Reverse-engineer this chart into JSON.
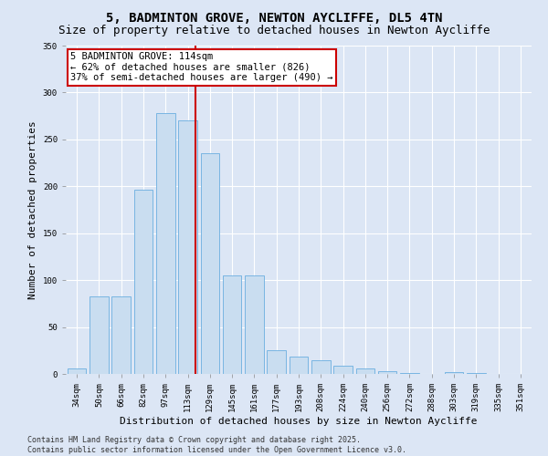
{
  "title_line1": "5, BADMINTON GROVE, NEWTON AYCLIFFE, DL5 4TN",
  "title_line2": "Size of property relative to detached houses in Newton Aycliffe",
  "xlabel": "Distribution of detached houses by size in Newton Aycliffe",
  "ylabel": "Number of detached properties",
  "categories": [
    "34sqm",
    "50sqm",
    "66sqm",
    "82sqm",
    "97sqm",
    "113sqm",
    "129sqm",
    "145sqm",
    "161sqm",
    "177sqm",
    "193sqm",
    "208sqm",
    "224sqm",
    "240sqm",
    "256sqm",
    "272sqm",
    "288sqm",
    "303sqm",
    "319sqm",
    "335sqm",
    "351sqm"
  ],
  "values": [
    6,
    83,
    83,
    196,
    278,
    270,
    235,
    105,
    105,
    25,
    18,
    15,
    9,
    6,
    3,
    1,
    0,
    2,
    1,
    0,
    0
  ],
  "bar_color": "#c9ddf0",
  "bar_edge_color": "#6aaee0",
  "property_label": "5 BADMINTON GROVE: 114sqm",
  "annotation_line1": "← 62% of detached houses are smaller (826)",
  "annotation_line2": "37% of semi-detached houses are larger (490) →",
  "vline_color": "#cc0000",
  "vline_x_index": 5.35,
  "annotation_box_color": "#ffffff",
  "annotation_box_edge_color": "#cc0000",
  "ylim": [
    0,
    350
  ],
  "yticks": [
    0,
    50,
    100,
    150,
    200,
    250,
    300,
    350
  ],
  "background_color": "#dce6f5",
  "plot_background_color": "#dce6f5",
  "footer_line1": "Contains HM Land Registry data © Crown copyright and database right 2025.",
  "footer_line2": "Contains public sector information licensed under the Open Government Licence v3.0.",
  "title_fontsize": 10,
  "subtitle_fontsize": 9,
  "axis_label_fontsize": 8,
  "tick_fontsize": 6.5,
  "annotation_fontsize": 7.5,
  "footer_fontsize": 6
}
